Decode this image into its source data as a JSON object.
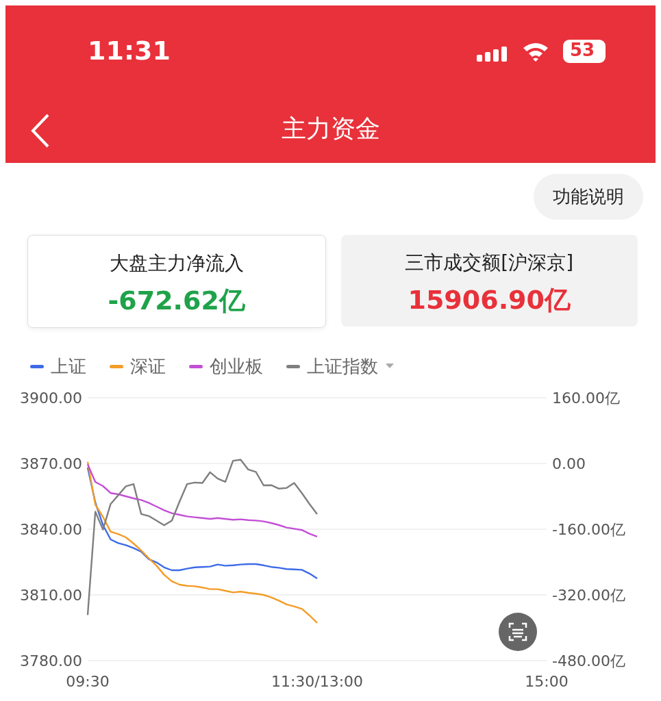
{
  "chart_data": {
    "type": "line",
    "title": "主力资金",
    "annotations": [
      "11:31",
      "53",
      "功能说明",
      "大盘主力净流入",
      "-672.62亿",
      "三市成交额[沪深京]",
      "15906.90亿"
    ],
    "categories": [
      "09:30",
      null,
      null,
      null,
      null,
      null,
      null,
      null,
      null,
      null,
      null,
      null,
      null,
      null,
      null,
      null,
      null,
      null,
      null,
      null,
      null,
      null,
      null,
      null,
      null,
      null,
      null,
      null,
      null,
      null,
      "11:30/13:00",
      null,
      null,
      null,
      null,
      null,
      null,
      null,
      null,
      null,
      null,
      null,
      null,
      null,
      null,
      null,
      null,
      null,
      null,
      null,
      null,
      null,
      null,
      null,
      null,
      null,
      null,
      null,
      null,
      null,
      "15:00"
    ],
    "ylim": [
      3780,
      3900
    ],
    "yticks": [
      {
        "value": 3780,
        "label": "3780.00"
      },
      {
        "value": 3810,
        "label": "3810.00"
      },
      {
        "value": 3840,
        "label": "3840.00"
      },
      {
        "value": 3870,
        "label": "3870.00"
      },
      {
        "value": 3900,
        "label": "3900.00"
      }
    ],
    "y2lim": [
      -480,
      160
    ],
    "y2ticks": [
      {
        "value": -480,
        "label": "-480.00亿"
      },
      {
        "value": -320,
        "label": "-320.00亿"
      },
      {
        "value": -160,
        "label": "-160.00亿"
      },
      {
        "value": 0,
        "label": "0.00"
      },
      {
        "value": 160,
        "label": "160.00亿"
      }
    ],
    "grid": "y",
    "legend": "top left",
    "marker": "none",
    "line_style": "solid",
    "series": [
      {
        "name": "上证",
        "color": "#3d6be8",
        "axis": "y2",
        "values": [
          -10,
          -95,
          -150,
          -185,
          -194,
          -199,
          -206,
          -215,
          -233,
          -241,
          -253,
          -260,
          -260,
          -256,
          -253,
          -252,
          -251,
          -246,
          -249,
          -248,
          -246,
          -245,
          -245,
          -248,
          -252,
          -254,
          -257,
          -258,
          -259,
          -268,
          -280,
          null,
          null,
          null,
          null,
          null,
          null,
          null,
          null,
          null,
          null,
          null,
          null,
          null,
          null,
          null,
          null,
          null,
          null,
          null,
          null,
          null,
          null,
          null,
          null,
          null,
          null,
          null,
          null,
          null,
          null
        ]
      },
      {
        "name": "深证",
        "color": "#f39c26",
        "axis": "y2",
        "values": [
          4,
          -100,
          -130,
          -166,
          -172,
          -180,
          -195,
          -212,
          -231,
          -249,
          -271,
          -287,
          -295,
          -298,
          -299,
          -302,
          -306,
          -306,
          -310,
          -314,
          -312,
          -315,
          -317,
          -320,
          -326,
          -334,
          -343,
          -348,
          -354,
          -370,
          -388,
          null,
          null,
          null,
          null,
          null,
          null,
          null,
          null,
          null,
          null,
          null,
          null,
          null,
          null,
          null,
          null,
          null,
          null,
          null,
          null,
          null,
          null,
          null,
          null,
          null,
          null,
          null,
          null,
          null,
          null
        ]
      },
      {
        "name": "创业板",
        "color": "#c34fd6",
        "axis": "y2",
        "values": [
          -2,
          -45,
          -55,
          -72,
          -75,
          -80,
          -85,
          -89,
          -96,
          -105,
          -114,
          -121,
          -125,
          -129,
          -131,
          -133,
          -135,
          -133,
          -135,
          -137,
          -136,
          -138,
          -139,
          -141,
          -145,
          -150,
          -156,
          -159,
          -162,
          -171,
          -178,
          null,
          null,
          null,
          null,
          null,
          null,
          null,
          null,
          null,
          null,
          null,
          null,
          null,
          null,
          null,
          null,
          null,
          null,
          null,
          null,
          null,
          null,
          null,
          null,
          null,
          null,
          null,
          null,
          null,
          null
        ]
      },
      {
        "name": "上证指数",
        "color": "#7f7f7f",
        "axis": "y",
        "values": [
          3800.8,
          3848.0,
          3839.8,
          3851.5,
          3855.5,
          3859.6,
          3860.6,
          3846.9,
          3846.0,
          3843.9,
          3841.8,
          3843.9,
          3852.5,
          3860.6,
          3861.3,
          3861.1,
          3866.0,
          3863.1,
          3861.6,
          3871.2,
          3871.7,
          3867.2,
          3866.1,
          3860.0,
          3860.1,
          3858.5,
          3858.8,
          3861.1,
          3856.5,
          3851.5,
          3846.9,
          null,
          null,
          null,
          null,
          null,
          null,
          null,
          null,
          null,
          null,
          null,
          null,
          null,
          null,
          null,
          null,
          null,
          null,
          null,
          null,
          null,
          null,
          null,
          null,
          null,
          null,
          null,
          null,
          null,
          null
        ]
      }
    ]
  }
}
